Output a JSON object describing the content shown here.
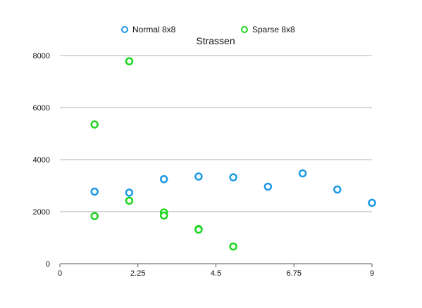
{
  "chart_data": {
    "type": "scatter",
    "title": "Strassen",
    "xlabel": "",
    "ylabel": "",
    "xlim": [
      0,
      9
    ],
    "ylim": [
      0,
      8000
    ],
    "x_ticks": [
      "0",
      "2.25",
      "4.5",
      "6.75",
      "9"
    ],
    "x_tick_values": [
      0,
      2.25,
      4.5,
      6.75,
      9
    ],
    "y_ticks": [
      "0",
      "2000",
      "4000",
      "6000",
      "8000"
    ],
    "y_tick_values": [
      0,
      2000,
      4000,
      6000,
      8000
    ],
    "grid": "horizontal",
    "legend_position": "top",
    "series": [
      {
        "name": "Normal 8x8",
        "color": "#1a9ae6",
        "points": [
          [
            1,
            2770
          ],
          [
            2,
            2730
          ],
          [
            3,
            3250
          ],
          [
            4,
            3350
          ],
          [
            5,
            3320
          ],
          [
            6,
            2960
          ],
          [
            7,
            3470
          ],
          [
            8,
            2850
          ],
          [
            9,
            2340
          ]
        ]
      },
      {
        "name": "Sparse 8x8",
        "color": "#1ed61e",
        "points": [
          [
            1,
            5350
          ],
          [
            1,
            1830
          ],
          [
            2,
            7780
          ],
          [
            2,
            2420
          ],
          [
            3,
            1970
          ],
          [
            3,
            1850
          ],
          [
            4,
            1330
          ],
          [
            4,
            1310
          ],
          [
            5,
            660
          ]
        ]
      }
    ]
  }
}
